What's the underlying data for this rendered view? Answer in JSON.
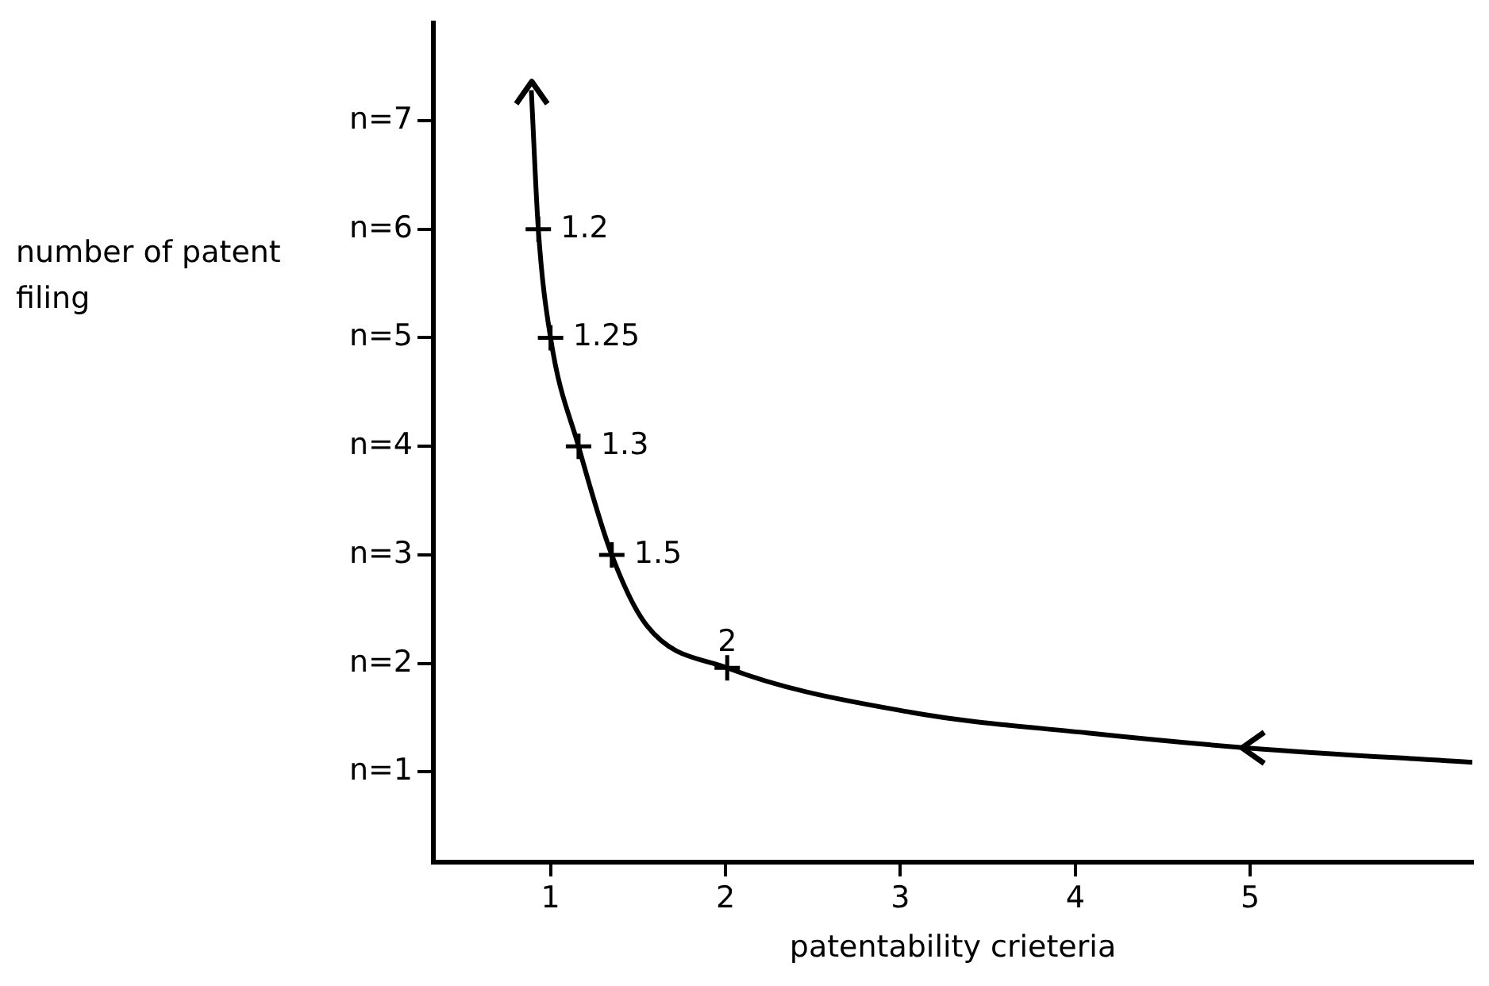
{
  "chart_data": {
    "type": "line",
    "xlabel": "patentability crieteria",
    "ylabel": "number of patent filing",
    "xlim": [
      0.33,
      6.27
    ],
    "xticks": [
      1,
      2,
      3,
      4,
      5
    ],
    "ylim": [
      0.17,
      7.9
    ],
    "yticks": [
      {
        "value": 1,
        "label": "n=1"
      },
      {
        "value": 2,
        "label": "n=2"
      },
      {
        "value": 3,
        "label": "n=3"
      },
      {
        "value": 4,
        "label": "n=4"
      },
      {
        "value": 5,
        "label": "n=5"
      },
      {
        "value": 6,
        "label": "n=6"
      },
      {
        "value": 7,
        "label": "n=7"
      }
    ],
    "grid": false,
    "legend": false,
    "annotations": [
      {
        "text": "1.2",
        "x": 0.93,
        "y": 6
      },
      {
        "text": "1.25",
        "x": 1.0,
        "y": 5
      },
      {
        "text": "1.3",
        "x": 1.16,
        "y": 4
      },
      {
        "text": "1.5",
        "x": 1.35,
        "y": 3
      },
      {
        "text": "2",
        "x": 2.01,
        "y": 1.96
      }
    ],
    "series": [
      {
        "color": "#000000",
        "marker": "none",
        "x": [
          0.89,
          0.93,
          1.0,
          1.16,
          1.35,
          1.55,
          2.01,
          3.06,
          4.07,
          5.0,
          6.27
        ],
        "values": [
          7.28,
          6,
          5,
          4,
          3,
          2.35,
          1.96,
          1.55,
          1.36,
          1.22,
          1.09
        ]
      },
      {
        "type": "scatter",
        "color": "#000000",
        "marker": "cross",
        "x": [
          0.93,
          1.0,
          1.16,
          1.35,
          2.01
        ],
        "values": [
          6,
          5,
          4,
          3,
          1.96
        ]
      }
    ]
  }
}
